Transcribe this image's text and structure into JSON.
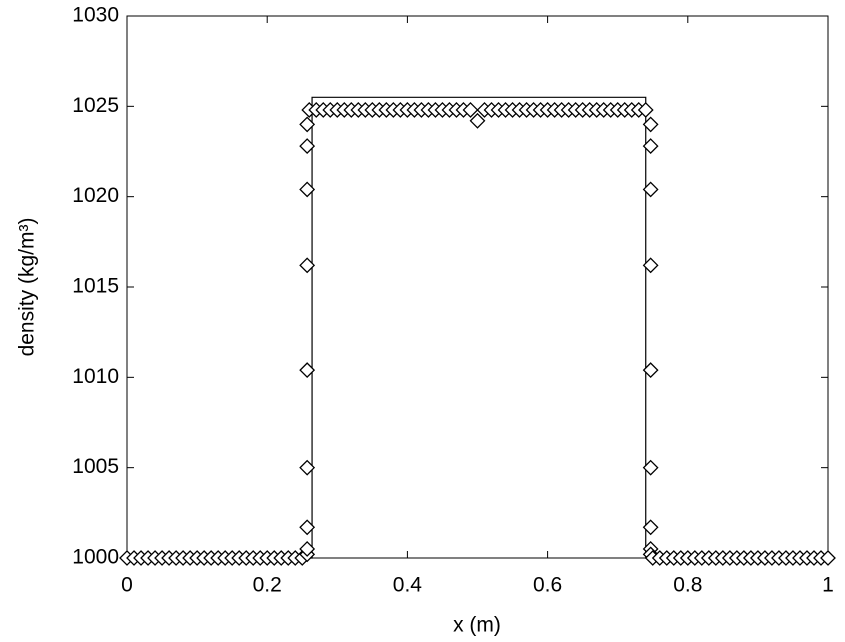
{
  "chart_data": {
    "type": "line",
    "xlabel": "x (m)",
    "ylabel": "density (kg/m³)",
    "xlim": [
      0,
      1
    ],
    "ylim": [
      1000,
      1030
    ],
    "xticks": [
      0,
      0.2,
      0.4,
      0.6,
      0.8,
      1
    ],
    "yticks": [
      1000,
      1005,
      1010,
      1015,
      1020,
      1025,
      1030
    ],
    "series": [
      {
        "mode": "line",
        "color": "#000000",
        "x": [
          0,
          0.264,
          0.264,
          0.74,
          0.74,
          1
        ],
        "y": [
          1000,
          1000,
          1025.5,
          1025.5,
          1000,
          1000
        ]
      },
      {
        "mode": "markers",
        "color": "#000000",
        "x": [
          0,
          0.01,
          0.02,
          0.03,
          0.04,
          0.05,
          0.06,
          0.07,
          0.08,
          0.09,
          0.1,
          0.11,
          0.12,
          0.13,
          0.14,
          0.15,
          0.16,
          0.17,
          0.18,
          0.19,
          0.2,
          0.21,
          0.22,
          0.23,
          0.24,
          0.25,
          0.257,
          0.257,
          0.257,
          0.257,
          0.257,
          0.257,
          0.257,
          0.257,
          0.257,
          0.26,
          0.27,
          0.28,
          0.29,
          0.3,
          0.31,
          0.32,
          0.33,
          0.34,
          0.35,
          0.36,
          0.37,
          0.38,
          0.39,
          0.4,
          0.41,
          0.42,
          0.43,
          0.44,
          0.45,
          0.46,
          0.47,
          0.48,
          0.49,
          0.5,
          0.51,
          0.52,
          0.53,
          0.54,
          0.55,
          0.56,
          0.57,
          0.58,
          0.59,
          0.6,
          0.61,
          0.62,
          0.63,
          0.64,
          0.65,
          0.66,
          0.67,
          0.68,
          0.69,
          0.7,
          0.71,
          0.72,
          0.73,
          0.74,
          0.747,
          0.747,
          0.747,
          0.747,
          0.747,
          0.747,
          0.747,
          0.747,
          0.747,
          0.75,
          0.76,
          0.77,
          0.78,
          0.79,
          0.8,
          0.81,
          0.82,
          0.83,
          0.84,
          0.85,
          0.86,
          0.87,
          0.88,
          0.89,
          0.9,
          0.91,
          0.92,
          0.93,
          0.94,
          0.95,
          0.96,
          0.97,
          0.98,
          0.99,
          1
        ],
        "y": [
          1000,
          1000,
          1000,
          1000,
          1000,
          1000,
          1000,
          1000,
          1000,
          1000,
          1000,
          1000,
          1000,
          1000,
          1000,
          1000,
          1000,
          1000,
          1000,
          1000,
          1000,
          1000,
          1000,
          1000,
          1000,
          1000,
          1000.2,
          1000.5,
          1001.7,
          1005,
          1010.4,
          1016.2,
          1020.4,
          1022.8,
          1024,
          1024.8,
          1024.8,
          1024.8,
          1024.8,
          1024.8,
          1024.8,
          1024.8,
          1024.8,
          1024.8,
          1024.8,
          1024.8,
          1024.8,
          1024.8,
          1024.8,
          1024.8,
          1024.8,
          1024.8,
          1024.8,
          1024.8,
          1024.8,
          1024.8,
          1024.8,
          1024.8,
          1024.8,
          1024.2,
          1024.8,
          1024.8,
          1024.8,
          1024.8,
          1024.8,
          1024.8,
          1024.8,
          1024.8,
          1024.8,
          1024.8,
          1024.8,
          1024.8,
          1024.8,
          1024.8,
          1024.8,
          1024.8,
          1024.8,
          1024.8,
          1024.8,
          1024.8,
          1024.8,
          1024.8,
          1024.8,
          1024.8,
          1024,
          1022.8,
          1020.4,
          1016.2,
          1010.4,
          1005,
          1001.7,
          1000.5,
          1000.2,
          1000,
          1000,
          1000,
          1000,
          1000,
          1000,
          1000,
          1000,
          1000,
          1000,
          1000,
          1000,
          1000,
          1000,
          1000,
          1000,
          1000,
          1000,
          1000,
          1000,
          1000,
          1000,
          1000,
          1000,
          1000,
          1000
        ]
      }
    ]
  }
}
